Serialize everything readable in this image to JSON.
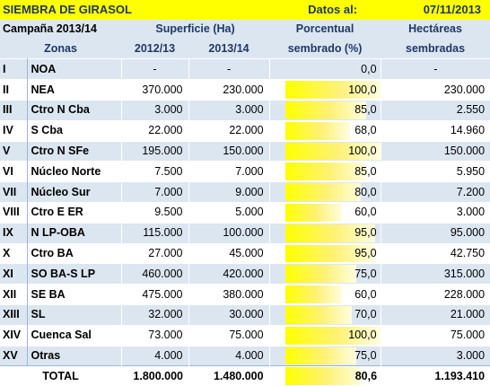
{
  "title": "SIEMBRA DE GIRASOL",
  "date_label": "Datos al:",
  "date_value": "07/11/2013",
  "headers": {
    "campaign": "Campaña 2013/14",
    "superficie": "Superficie (Ha)",
    "porcentual_1": "Porcentual",
    "porcentual_2": "sembrado (%)",
    "hectareas_1": "Hectáreas",
    "hectareas_2": "sembradas",
    "zonas": "Zonas",
    "y1": "2012/13",
    "y2": "2013/14"
  },
  "rows": [
    {
      "num": "I",
      "zona": "NOA",
      "s1": "-",
      "s2": "-",
      "pct": "0,0",
      "pct_value": 0,
      "ha": "-"
    },
    {
      "num": "II",
      "zona": "NEA",
      "s1": "370.000",
      "s2": "230.000",
      "pct": "100,0",
      "pct_value": 100,
      "ha": "230.000"
    },
    {
      "num": "III",
      "zona": "Ctro N Cba",
      "s1": "3.000",
      "s2": "3.000",
      "pct": "85,0",
      "pct_value": 85,
      "ha": "2.550"
    },
    {
      "num": "IV",
      "zona": "S Cba",
      "s1": "22.000",
      "s2": "22.000",
      "pct": "68,0",
      "pct_value": 68,
      "ha": "14.960"
    },
    {
      "num": "V",
      "zona": "Ctro N SFe",
      "s1": "195.000",
      "s2": "150.000",
      "pct": "100,0",
      "pct_value": 100,
      "ha": "150.000"
    },
    {
      "num": "VI",
      "zona": "Núcleo Norte",
      "s1": "7.500",
      "s2": "7.000",
      "pct": "85,0",
      "pct_value": 85,
      "ha": "5.950"
    },
    {
      "num": "VII",
      "zona": "Núcleo Sur",
      "s1": "7.000",
      "s2": "9.000",
      "pct": "80,0",
      "pct_value": 80,
      "ha": "7.200"
    },
    {
      "num": "VIII",
      "zona": "Ctro E ER",
      "s1": "9.500",
      "s2": "5.000",
      "pct": "60,0",
      "pct_value": 60,
      "ha": "3.000"
    },
    {
      "num": "IX",
      "zona": "N LP-OBA",
      "s1": "115.000",
      "s2": "100.000",
      "pct": "95,0",
      "pct_value": 95,
      "ha": "95.000"
    },
    {
      "num": "X",
      "zona": "Ctro BA",
      "s1": "27.000",
      "s2": "45.000",
      "pct": "95,0",
      "pct_value": 95,
      "ha": "42.750"
    },
    {
      "num": "XI",
      "zona": "SO BA-S LP",
      "s1": "460.000",
      "s2": "420.000",
      "pct": "75,0",
      "pct_value": 75,
      "ha": "315.000"
    },
    {
      "num": "XII",
      "zona": "SE BA",
      "s1": "475.000",
      "s2": "380.000",
      "pct": "60,0",
      "pct_value": 60,
      "ha": "228.000"
    },
    {
      "num": "XIII",
      "zona": "SL",
      "s1": "32.000",
      "s2": "30.000",
      "pct": "70,0",
      "pct_value": 70,
      "ha": "21.000"
    },
    {
      "num": "XIV",
      "zona": "Cuenca Sal",
      "s1": "73.000",
      "s2": "75.000",
      "pct": "100,0",
      "pct_value": 100,
      "ha": "75.000"
    },
    {
      "num": "XV",
      "zona": "Otras",
      "s1": "4.000",
      "s2": "4.000",
      "pct": "75,0",
      "pct_value": 75,
      "ha": "3.000"
    }
  ],
  "total": {
    "label": "TOTAL",
    "s1": "1.800.000",
    "s2": "1.480.000",
    "pct": "80,6",
    "pct_value": 80.6,
    "ha": "1.193.410"
  },
  "colors": {
    "title_bg": "#ffff00",
    "header_bg": "#dce6f1",
    "header_text": "#1f3864",
    "bar": "#ffff00"
  }
}
